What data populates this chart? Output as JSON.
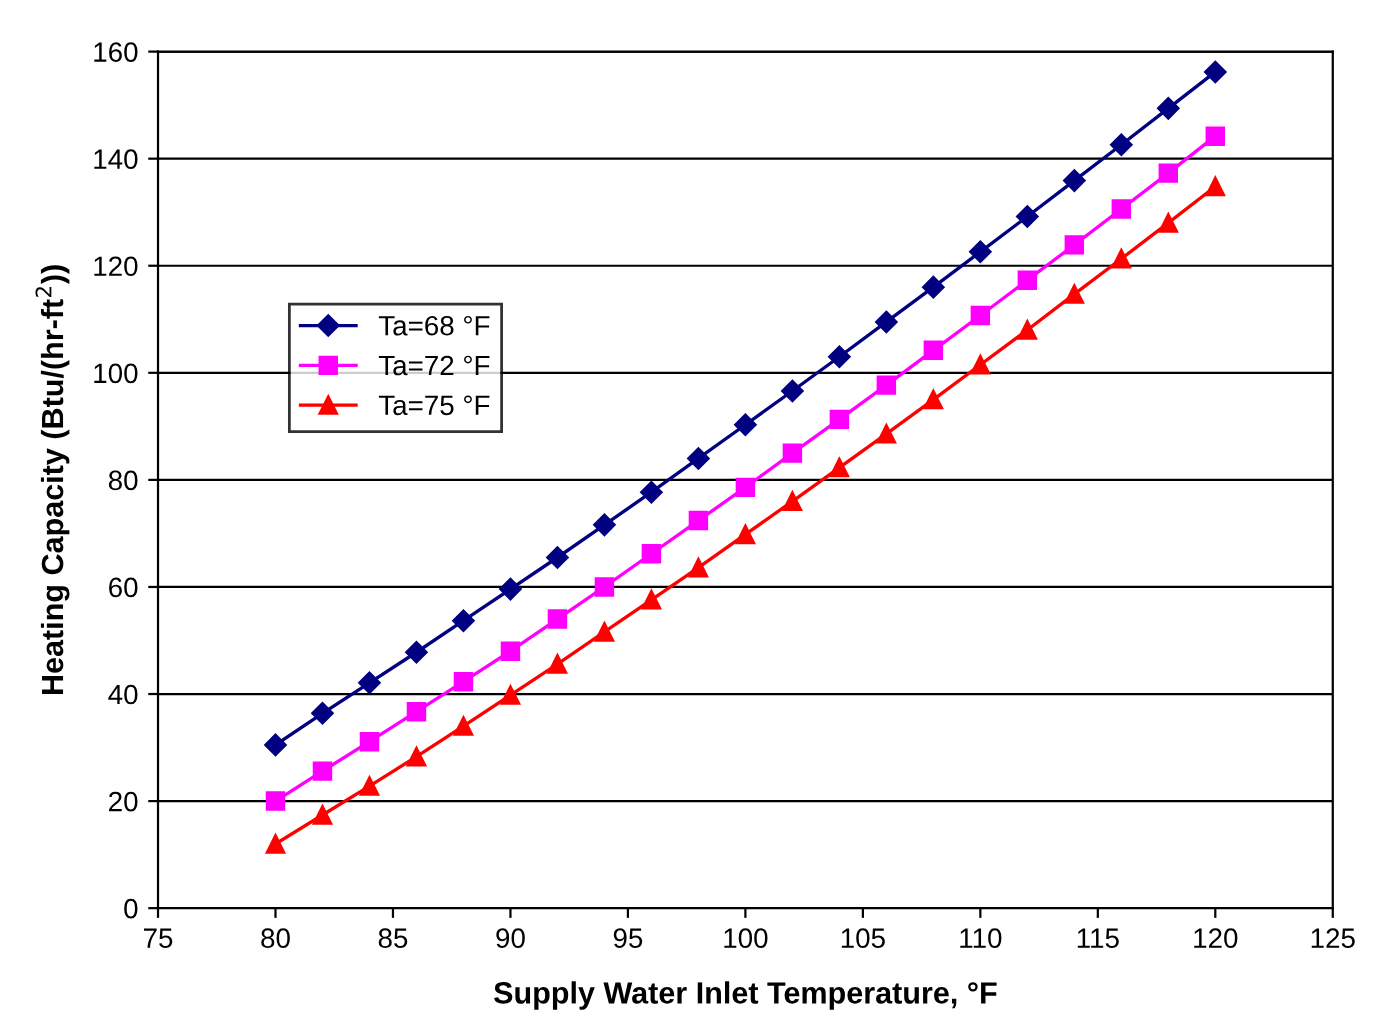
{
  "chart_data": {
    "type": "line",
    "xlabel": "Supply Water Inlet Temperature, °F",
    "ylabel": "Heating Capacity (Btu/(hr-ft$^{2}$))",
    "x": [
      80,
      82,
      84,
      86,
      88,
      90,
      92,
      94,
      96,
      98,
      100,
      102,
      104,
      106,
      108,
      110,
      112,
      114,
      116,
      118,
      120
    ],
    "series": [
      {
        "name": "Ta=68 °F",
        "color": "#000080",
        "marker": "diamond",
        "values": [
          30.5,
          36.4,
          42.1,
          47.8,
          53.7,
          59.6,
          65.5,
          71.6,
          77.7,
          84,
          90.3,
          96.6,
          103,
          109.5,
          116,
          122.6,
          129.2,
          135.9,
          142.6,
          149.4,
          156.2
        ]
      },
      {
        "name": "Ta=72 °F",
        "color": "#ff00ff",
        "marker": "square",
        "values": [
          20,
          25.6,
          31.1,
          36.7,
          42.3,
          48,
          54,
          60,
          66.2,
          72.4,
          78.6,
          85,
          91.3,
          97.7,
          104.2,
          110.7,
          117.3,
          123.9,
          130.6,
          137.3,
          144.2
        ]
      },
      {
        "name": "Ta=75 °F",
        "color": "#ff0000",
        "marker": "triangle",
        "values": [
          12,
          17.4,
          22.8,
          28.3,
          34,
          39.8,
          45.6,
          51.6,
          57.6,
          63.6,
          69.8,
          76,
          82.3,
          88.6,
          95,
          101.5,
          108,
          114.7,
          121.3,
          128,
          134.8
        ]
      }
    ],
    "xlim": [
      75,
      125
    ],
    "xticks": [
      75,
      80,
      85,
      90,
      95,
      100,
      105,
      110,
      115,
      120,
      125
    ],
    "ylim": [
      0,
      160
    ],
    "yticks": [
      0,
      20,
      40,
      60,
      80,
      100,
      120,
      140,
      160
    ],
    "grid": "y",
    "legend": "top left",
    "line_style": "solid"
  }
}
